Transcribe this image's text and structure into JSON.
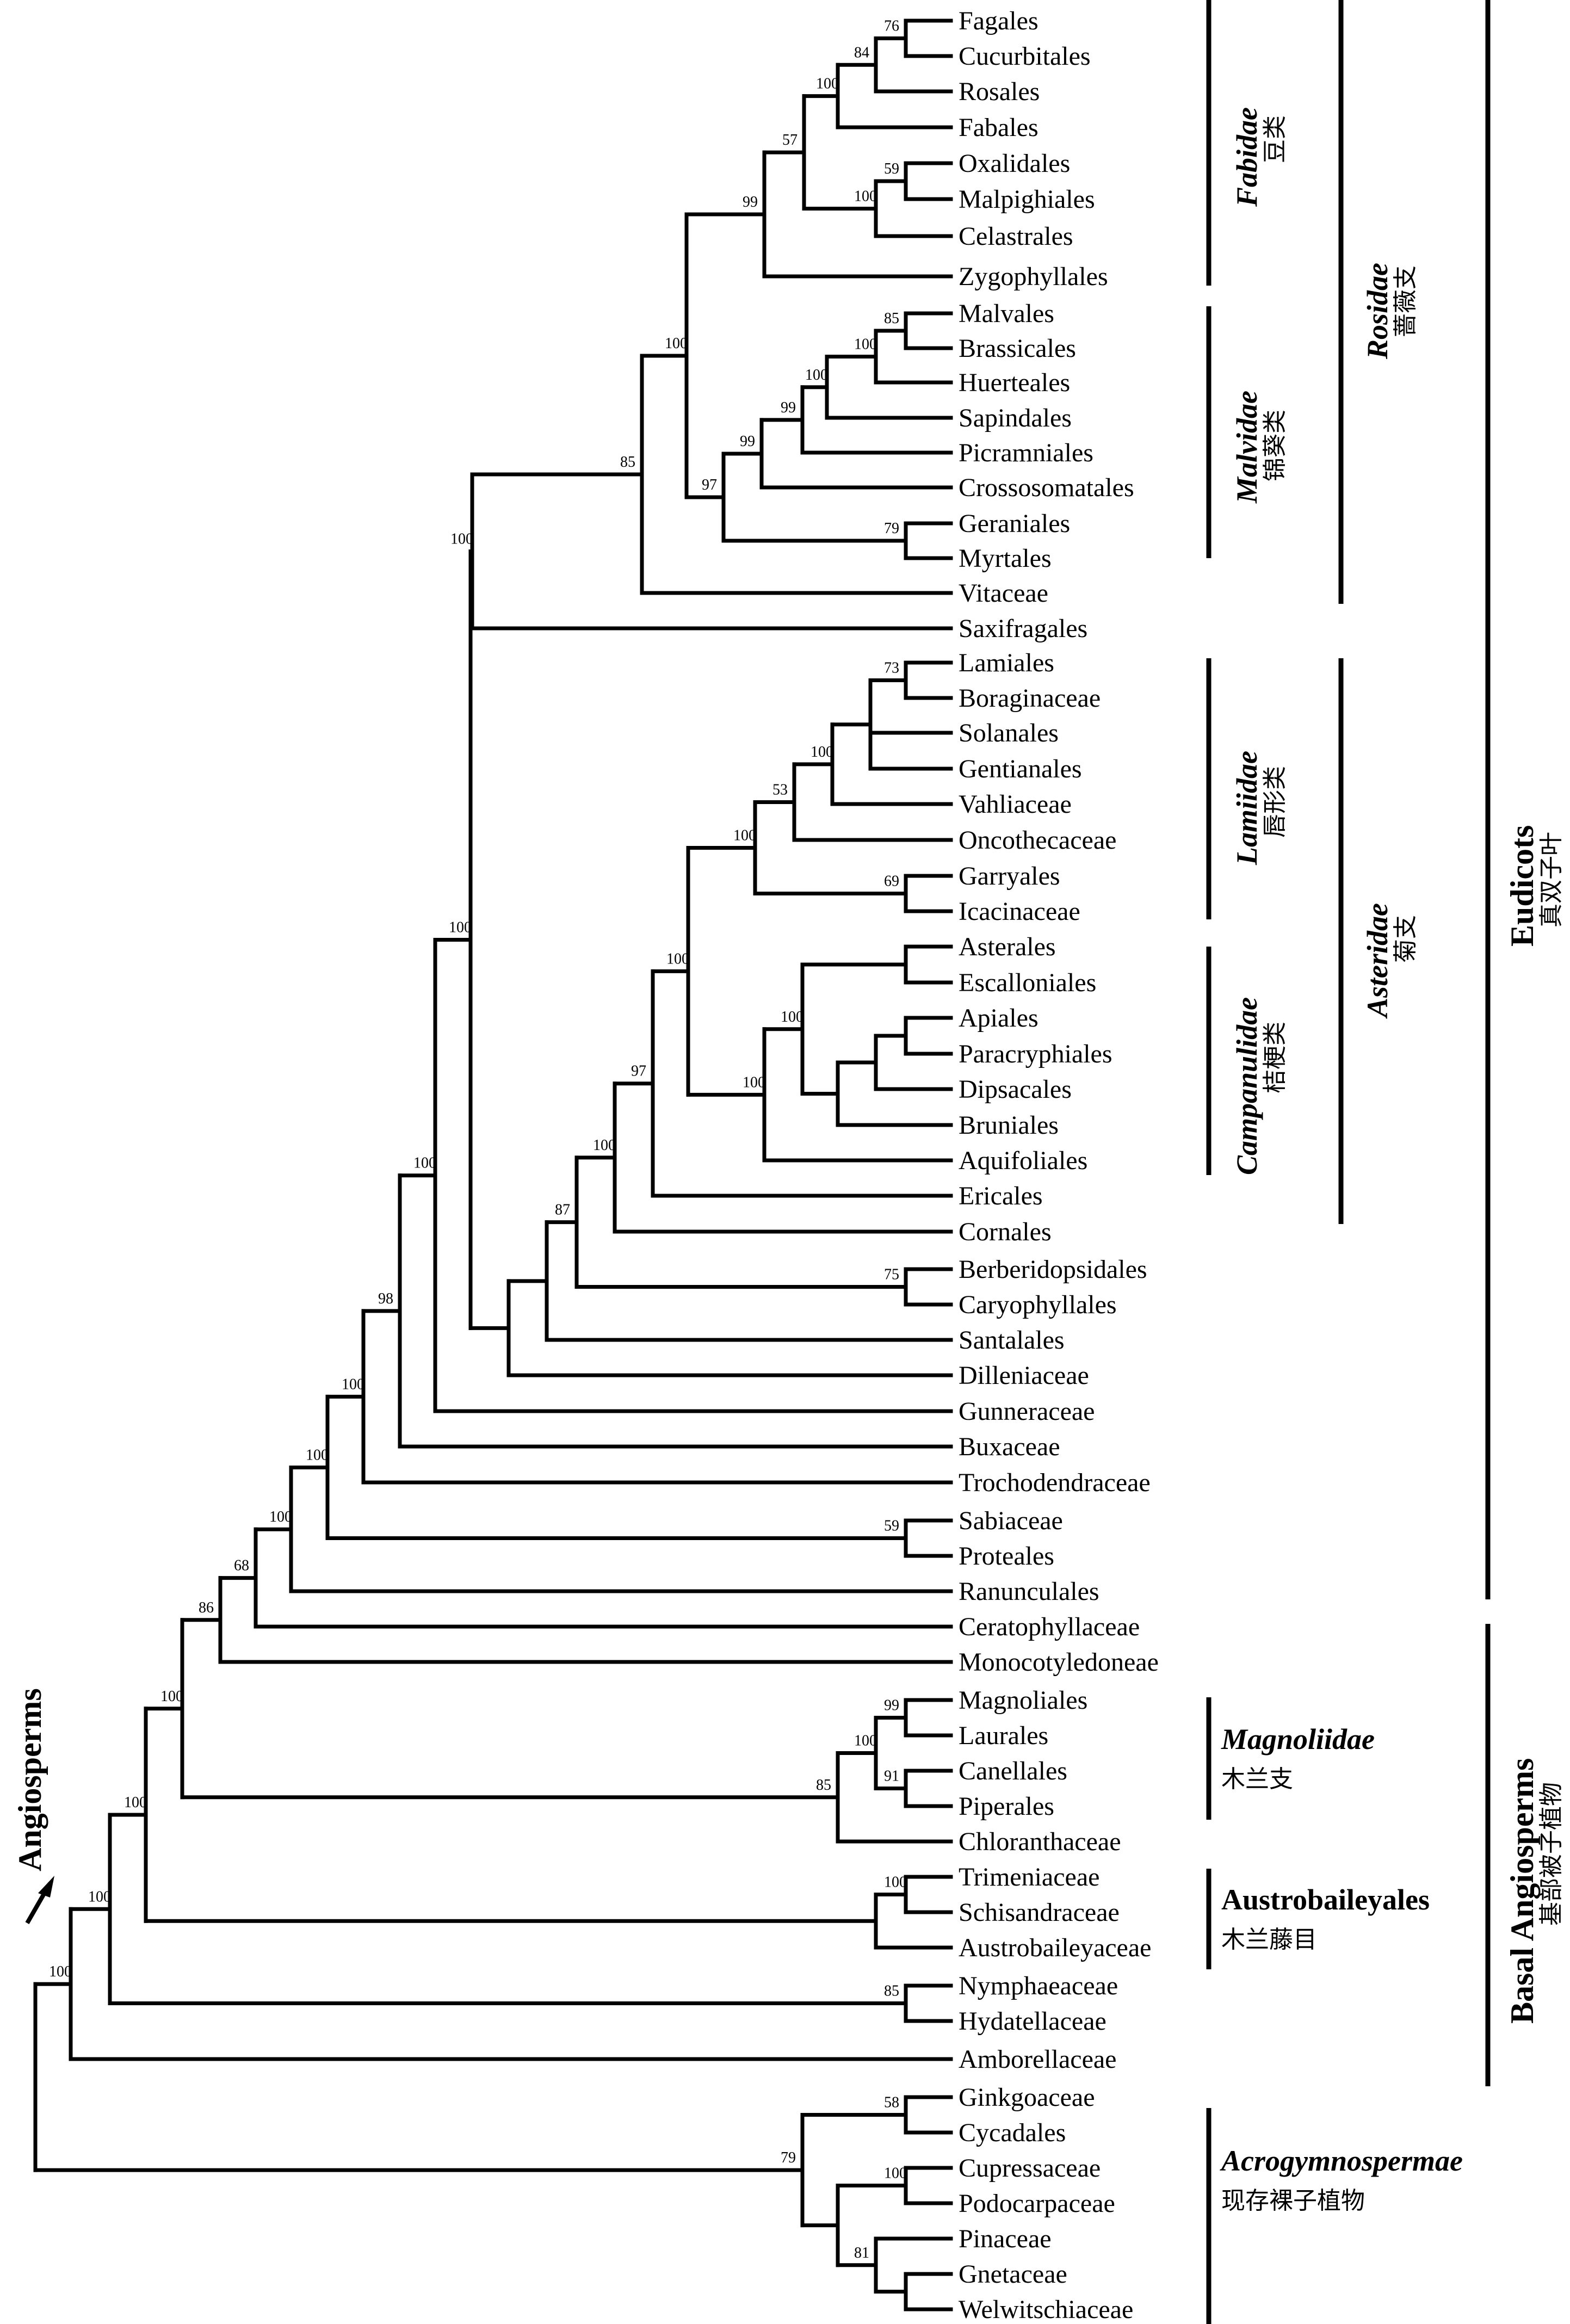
{
  "taxa": [
    "Fagales",
    "Cucurbitales",
    "Rosales",
    "Fabales",
    "Oxalidales",
    "Malpighiales",
    "Celastrales",
    "Zygophyllales",
    "Malvales",
    "Brassicales",
    "Huerteales",
    "Sapindales",
    "Picramniales",
    "Crossosomatales",
    "Geraniales",
    "Myrtales",
    "Vitaceae",
    "Saxifragales",
    "Lamiales",
    "Boraginaceae",
    "Solanales",
    "Gentianales",
    "Vahliaceae",
    "Oncothecaceae",
    "Garryales",
    "Icacinaceae",
    "Asterales",
    "Escalloniales",
    "Apiales",
    "Paracryphiales",
    "Dipsacales",
    "Bruniales",
    "Aquifoliales",
    "Ericales",
    "Cornales",
    "Berberidopsidales",
    "Caryophyllales",
    "Santalales",
    "Dilleniaceae",
    "Gunneraceae",
    "Buxaceae",
    "Trochodendraceae",
    "Sabiaceae",
    "Proteales",
    "Ranunculales",
    "Ceratophyllaceae",
    "Monocotyledoneae",
    "Magnoliales",
    "Laurales",
    "Canellales",
    "Piperales",
    "Chloranthaceae",
    "Trimeniaceae",
    "Schisandraceae",
    "Austrobaileyaceae",
    "Nymphaeaceae",
    "Hydatellaceae",
    "Amborellaceae",
    "Ginkgoaceae",
    "Cycadales",
    "Cupressaceae",
    "Podocarpaceae",
    "Pinaceae",
    "Gnetaceae",
    "Welwitschiaceae"
  ],
  "support_values": [
    "76",
    "84",
    "100",
    "57",
    "59",
    "100",
    "99",
    "85",
    "100",
    "100",
    "99",
    "99",
    "97",
    "79",
    "100",
    "85",
    "100",
    "73",
    "100",
    "53",
    "100",
    "69",
    "100",
    "100",
    "100",
    "97",
    "100",
    "75",
    "87",
    "100",
    "100",
    "98",
    "100",
    "100",
    "59",
    "100",
    "68",
    "86",
    "99",
    "91",
    "100",
    "85",
    "100",
    "100",
    "100",
    "100",
    "85",
    "100",
    "58",
    "100",
    "81",
    "79"
  ],
  "groups": {
    "fabidae": {
      "name": "Fabidae",
      "cn": "豆类"
    },
    "malvidae": {
      "name": "Malvidae",
      "cn": "锦葵类"
    },
    "rosidae": {
      "name": "Rosidae",
      "cn": "蔷薇支"
    },
    "lamiidae": {
      "name": "Lamiidae",
      "cn": "唇形类"
    },
    "campanulidae": {
      "name": "Campanulidae",
      "cn": "桔梗类"
    },
    "asteridae": {
      "name": "Asteridae",
      "cn": "菊支"
    },
    "eudicots": {
      "name": "Eudicots",
      "cn": "真双子叶"
    },
    "magnoliidae": {
      "name": "Magnoliidae",
      "cn": "木兰支"
    },
    "austrobaileyales": {
      "name": "Austrobaileyales",
      "cn": "木兰藤目"
    },
    "basal": {
      "name": "Basal Angiosperms",
      "cn": "基部被子植物"
    },
    "acrogymnospermae": {
      "name": "Acrogymnospermae",
      "cn": "现存裸子植物"
    },
    "angiosperms": {
      "name": "Angiosperms"
    }
  }
}
